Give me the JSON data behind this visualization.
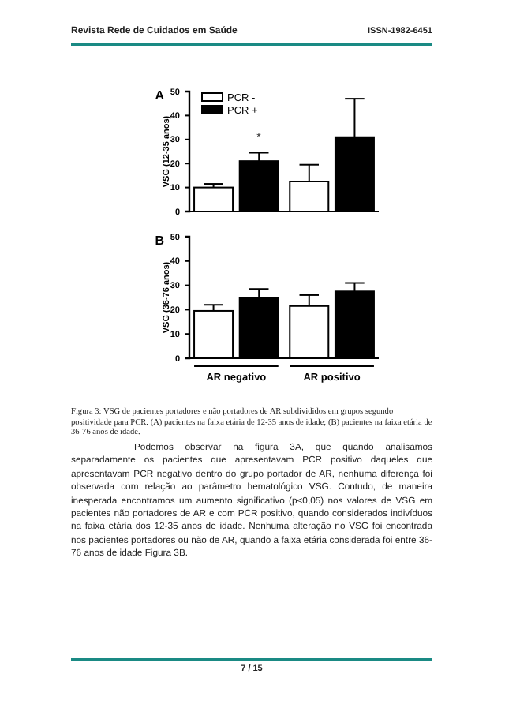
{
  "chart_data": [
    {
      "type": "bar",
      "title": "A",
      "ylabel": "VSG (12-35 anos)",
      "categories": [
        null,
        null
      ],
      "ylim": [
        0,
        50
      ],
      "yticks": [
        0,
        10,
        20,
        30,
        40,
        50
      ],
      "tick_labels": "y",
      "legend": "top left",
      "series": [
        {
          "name": "PCR -",
          "color": "#ffffff",
          "values": [
            10,
            12.5
          ],
          "errors": [
            [
              10,
              11.5
            ],
            [
              12.5,
              19.5
            ]
          ]
        },
        {
          "name": "PCR +",
          "color": "#000000",
          "values": [
            21,
            31
          ],
          "errors": [
            [
              21,
              24.5
            ],
            [
              31,
              47
            ]
          ]
        }
      ],
      "annotations": [
        "Revista Rede de Cuidados em Saúde",
        "ISSN-1982-6451",
        "*"
      ]
    },
    {
      "type": "bar",
      "title": "B",
      "ylabel": "VSG (36-76 anos)",
      "categories": [
        "AR negativo",
        "AR positivo"
      ],
      "ylim": [
        0,
        50
      ],
      "yticks": [
        0,
        10,
        20,
        30,
        40,
        50
      ],
      "series": [
        {
          "color": "#ffffff",
          "values": [
            19.5,
            21.5
          ],
          "errors": [
            [
              19.5,
              22
            ],
            [
              21.5,
              26
            ]
          ]
        },
        {
          "color": "#000000",
          "values": [
            25,
            27.5
          ],
          "errors": [
            [
              25,
              28.5
            ],
            [
              27.5,
              31
            ]
          ]
        }
      ],
      "annotations": [
        "Figura 3: VSG de pacientes portadores e não portadores de AR subdivididos em grupos segundo positividade para PCR. (A) pacientes na faixa etária de 12-35 anos de idade; (B) pacientes na faixa etária de 36-76 anos de idade.",
        "Podemos observar na figura 3A, que quando analisamos separadamente os pacientes que apresentavam PCR positivo daqueles que apresentavam PCR negativo dentro do grupo portador de AR, nenhuma diferença foi observada com relação ao parâmetro hematológico VSG. Contudo, de maneira inesperada encontramos um aumento significativo (p<0,05) nos valores de VSG em pacientes não portadores de AR e com PCR positivo, quando considerados indivíduos na faixa etária dos 12-35 anos de idade. Nenhuma alteração no VSG foi encontrada nos pacientes portadores ou não de AR, quando a faixa etária considerada foi entre 36-76 anos de idade Figura 3B.",
        "7 / 15"
      ]
    }
  ]
}
